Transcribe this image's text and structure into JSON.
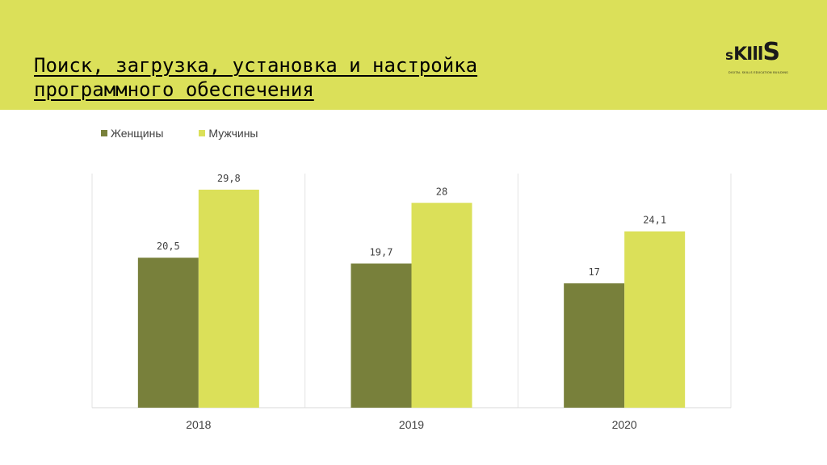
{
  "header": {
    "title_line1": "Поиск, загрузка, установка и настройка",
    "title_line2": "программного обеспечения"
  },
  "logo": {
    "text_s": "s",
    "text_kill": "KIll",
    "text_S": "S",
    "subtitle": "DIGITAL SKILLS EDUCATION BUILDING"
  },
  "chart_data": {
    "type": "bar",
    "categories": [
      "2018",
      "2019",
      "2020"
    ],
    "series": [
      {
        "name": "Женщины",
        "values": [
          20.5,
          19.7,
          17
        ],
        "labels": [
          "20,5",
          "19,7",
          "17"
        ],
        "color": "#78803b"
      },
      {
        "name": "Мужчины",
        "values": [
          29.8,
          28,
          24.1
        ],
        "labels": [
          "29,8",
          "28",
          "24,1"
        ],
        "color": "#dbe059"
      }
    ],
    "ylim": [
      0,
      32
    ],
    "grid": "vertical",
    "legend": "top-left",
    "xlabel": "",
    "ylabel": ""
  }
}
